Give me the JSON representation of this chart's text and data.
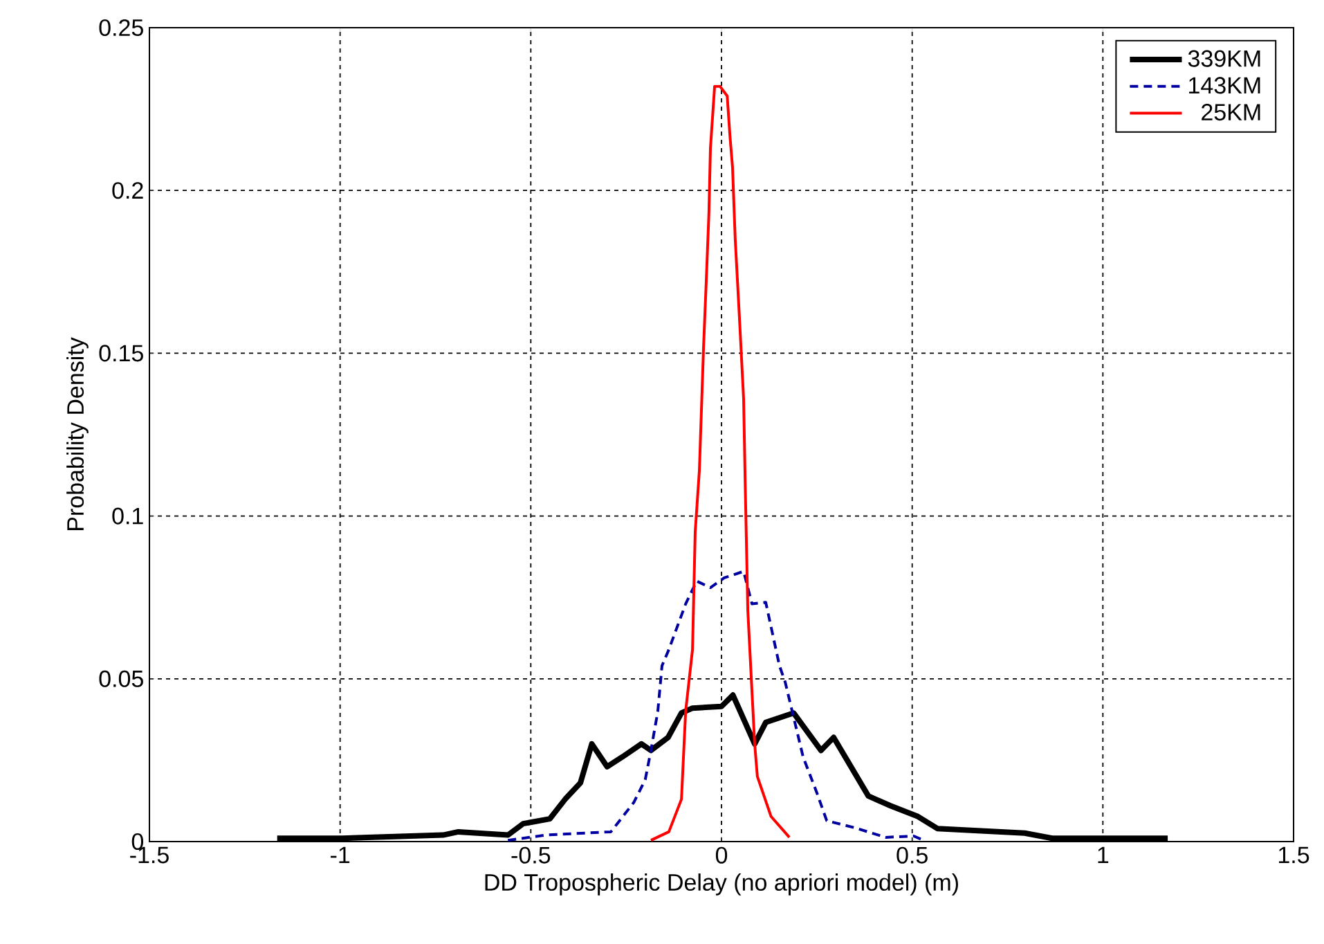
{
  "chart_data": {
    "type": "line",
    "xlabel": "DD Tropospheric Delay (no apriori model) (m)",
    "ylabel": "Probability Density",
    "xlim": [
      -1.5,
      1.5
    ],
    "xticks": [
      -1.5,
      -1,
      -0.5,
      0,
      0.5,
      1,
      1.5
    ],
    "ylim": [
      0,
      0.25
    ],
    "yticks": [
      0,
      0.05,
      0.1,
      0.15,
      0.2,
      0.25
    ],
    "grid": true,
    "legend": "top right",
    "series": [
      {
        "name": "339KM",
        "color": "#000000",
        "line_style": "solid",
        "x": [
          -1.165,
          -1.147,
          -0.995,
          -0.73,
          -0.69,
          -0.56,
          -0.52,
          -0.45,
          -0.41,
          -0.37,
          -0.34,
          -0.3,
          -0.26,
          -0.21,
          -0.185,
          -0.14,
          -0.105,
          -0.076,
          0.0,
          0.03,
          0.087,
          0.116,
          0.189,
          0.261,
          0.294,
          0.385,
          0.443,
          0.515,
          0.566,
          0.795,
          0.867,
          1.17
        ],
        "values": [
          0.001,
          0.001,
          0.001,
          0.002,
          0.003,
          0.002,
          0.0055,
          0.007,
          0.013,
          0.018,
          0.03,
          0.023,
          0.026,
          0.03,
          0.028,
          0.032,
          0.0395,
          0.041,
          0.0415,
          0.045,
          0.03,
          0.0366,
          0.0395,
          0.028,
          0.032,
          0.014,
          0.011,
          0.0077,
          0.004,
          0.0026,
          0.001,
          0.001
        ]
      },
      {
        "name": "143KM",
        "color": "#0000a0",
        "line_style": "dashed",
        "x": [
          -0.56,
          -0.46,
          -0.29,
          -0.23,
          -0.2,
          -0.185,
          -0.167,
          -0.156,
          -0.138,
          -0.094,
          -0.065,
          -0.029,
          0.007,
          0.058,
          0.08,
          0.116,
          0.152,
          0.167,
          0.214,
          0.25,
          0.276,
          0.348,
          0.43,
          0.504,
          0.53
        ],
        "values": [
          0.0004,
          0.002,
          0.003,
          0.012,
          0.019,
          0.028,
          0.04,
          0.054,
          0.059,
          0.073,
          0.08,
          0.078,
          0.081,
          0.083,
          0.073,
          0.0735,
          0.054,
          0.049,
          0.026,
          0.015,
          0.0064,
          0.0043,
          0.0013,
          0.0017,
          0.0004
        ]
      },
      {
        "name": " 25KM",
        "color": "#ff0000",
        "line_style": "solid",
        "x": [
          -0.185,
          -0.138,
          -0.105,
          -0.094,
          -0.076,
          -0.069,
          -0.058,
          -0.047,
          -0.04,
          -0.033,
          -0.029,
          -0.018,
          -0.004,
          0.015,
          0.022,
          0.029,
          0.036,
          0.047,
          0.058,
          0.062,
          0.069,
          0.087,
          0.094,
          0.13,
          0.178
        ],
        "values": [
          0.0004,
          0.003,
          0.013,
          0.04,
          0.059,
          0.095,
          0.114,
          0.152,
          0.172,
          0.193,
          0.213,
          0.232,
          0.232,
          0.229,
          0.217,
          0.207,
          0.185,
          0.161,
          0.136,
          0.111,
          0.071,
          0.03,
          0.02,
          0.0077,
          0.0013
        ]
      }
    ]
  }
}
